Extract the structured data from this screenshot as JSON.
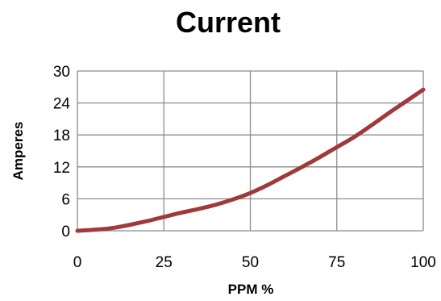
{
  "chart_data": {
    "type": "line",
    "title": "Current",
    "xlabel": "PPM %",
    "ylabel": "Amperes",
    "xlim": [
      0,
      100
    ],
    "ylim": [
      0,
      30
    ],
    "x_ticks": [
      "0",
      "25",
      "50",
      "75",
      "100"
    ],
    "y_ticks": [
      "0",
      "6",
      "12",
      "18",
      "24",
      "30"
    ],
    "grid": true,
    "legend": "none",
    "series": [
      {
        "color": "#A0393A",
        "x": [
          0,
          5,
          10,
          15,
          20,
          25,
          30,
          35,
          40,
          45,
          50,
          55,
          60,
          65,
          70,
          75,
          80,
          85,
          90,
          95,
          100
        ],
        "y": [
          0,
          0.2,
          0.5,
          1.1,
          1.8,
          2.6,
          3.4,
          4.1,
          4.9,
          5.9,
          7.1,
          8.6,
          10.3,
          12.0,
          13.8,
          15.7,
          17.6,
          19.8,
          22.1,
          24.3,
          26.5
        ]
      }
    ]
  }
}
